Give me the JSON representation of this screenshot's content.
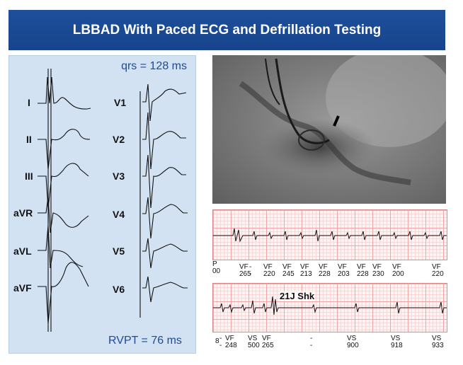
{
  "title": "LBBAD With Paced ECG and Defrillation Testing",
  "ecg": {
    "qrs": "qrs = 128 ms",
    "rvpt": "RVPT = 76 ms",
    "limb_leads": [
      "I",
      "II",
      "III",
      "aVR",
      "aVL",
      "aVF"
    ],
    "precordial_leads": [
      "V1",
      "V2",
      "V3",
      "V4",
      "V5",
      "V6"
    ]
  },
  "strip1": {
    "labels": [
      {
        "top": "P",
        "bottom": "00"
      },
      {
        "top": "--",
        "bottom": ""
      },
      {
        "top": "VF",
        "bottom": "265"
      },
      {
        "top": "VF",
        "bottom": "220"
      },
      {
        "top": "VF",
        "bottom": "245"
      },
      {
        "top": "VF",
        "bottom": "213"
      },
      {
        "top": "VF",
        "bottom": "228"
      },
      {
        "top": "VF",
        "bottom": "203"
      },
      {
        "top": "VF",
        "bottom": "228"
      },
      {
        "top": "VF",
        "bottom": "230"
      },
      {
        "top": "VF",
        "bottom": "200"
      },
      {
        "top": "VF",
        "bottom": "220"
      }
    ]
  },
  "strip2": {
    "annotation": "21J Shk",
    "labels": [
      {
        "top": "8",
        "bottom": ""
      },
      {
        "top": "--",
        "bottom": ""
      },
      {
        "top": "VF",
        "bottom": "248"
      },
      {
        "top": "VS",
        "bottom": "500"
      },
      {
        "top": "VF",
        "bottom": "265"
      },
      {
        "top": "--",
        "bottom": ""
      },
      {
        "top": "VS",
        "bottom": "900"
      },
      {
        "top": "VS",
        "bottom": "918"
      },
      {
        "top": "VS",
        "bottom": "933"
      }
    ]
  }
}
